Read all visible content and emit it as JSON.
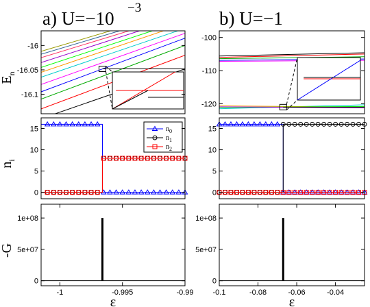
{
  "titles": {
    "left": "a)  U=−10",
    "left_exp": "−3",
    "right": "b)  U=−1"
  },
  "colors": {
    "n0": "#0000ff",
    "n1": "#000000",
    "n2": "#ff0000",
    "spectrum": [
      "#000000",
      "#ff0000",
      "#00aa00",
      "#0000ff",
      "#ff00ff",
      "#00cccc",
      "#ff9900",
      "#00ff00",
      "#9900cc",
      "#ff3366",
      "#336699",
      "#999900"
    ]
  },
  "chart_data": [
    {
      "id": "a-energy",
      "type": "line",
      "panel": "a",
      "ylabel": "E",
      "ylabel_sub": "n",
      "xlim": [
        -1.0015,
        -0.99
      ],
      "ylim": [
        -16.14,
        -15.97
      ],
      "yticks": [
        -16.1,
        -16.05,
        -16
      ],
      "ytick_labels": [
        "-16.1",
        "-16.05",
        "-16"
      ],
      "grid": false,
      "crossing_level": -16.048,
      "crossing_x": -0.9966,
      "levels": [
        {
          "y0": -16.15,
          "y1": -16.048
        },
        {
          "y0": -16.13,
          "y1": -16.02
        },
        {
          "y0": -16.11,
          "y1": -16.0
        },
        {
          "y0": -16.095,
          "y1": -15.985
        },
        {
          "y0": -16.08,
          "y1": -15.975
        },
        {
          "y0": -16.065,
          "y1": -15.965
        },
        {
          "y0": -16.055,
          "y1": -15.955
        },
        {
          "y0": -16.045,
          "y1": -15.948
        },
        {
          "y0": -16.035,
          "y1": -15.94
        },
        {
          "y0": -16.025,
          "y1": -15.935
        },
        {
          "y0": -16.018,
          "y1": -15.93
        },
        {
          "y0": -16.012,
          "y1": -15.925
        }
      ],
      "inset": true
    },
    {
      "id": "b-energy",
      "type": "line",
      "panel": "b",
      "ylabel": "",
      "xlim": [
        -0.1,
        -0.025
      ],
      "ylim": [
        -123,
        -98
      ],
      "yticks": [
        -120,
        -110,
        -100
      ],
      "ytick_labels": [
        "-120",
        "-110",
        "-100"
      ],
      "grid": false,
      "levels": [
        {
          "y0": -105.6,
          "y1": -104.6
        },
        {
          "y0": -106.0,
          "y1": -105.0
        },
        {
          "y0": -106.4,
          "y1": -105.8
        },
        {
          "y0": -106.9,
          "y1": -106.5
        },
        {
          "y0": -107.2,
          "y1": -106.9
        },
        {
          "y0": -121.5,
          "y1": -120.3
        },
        {
          "y0": -120.6,
          "y1": -121.0
        },
        {
          "y0": -121.1,
          "y1": -120.8
        },
        {
          "y0": -120.9,
          "y1": -121.2
        }
      ],
      "crossing_level": -121.0,
      "crossing_x": -0.067,
      "inset": true
    },
    {
      "id": "a-occupation",
      "type": "line",
      "panel": "a",
      "ylabel": "n",
      "ylabel_sub": "i",
      "xlim": [
        -1.0015,
        -0.99
      ],
      "ylim": [
        -1.5,
        17.5
      ],
      "yticks": [
        0,
        5,
        10,
        15
      ],
      "ytick_labels": [
        "0",
        "5",
        "10",
        "15"
      ],
      "step_x": -0.9966,
      "legend": [
        "n",
        "n",
        "n"
      ],
      "legend_sub": [
        "0",
        "1",
        "2"
      ],
      "legend_position": "top-right",
      "series": [
        {
          "name": "n0",
          "before": 16,
          "after": 0,
          "marker": "triangle"
        },
        {
          "name": "n1",
          "before": 0,
          "after": 8,
          "marker": "circle"
        },
        {
          "name": "n2",
          "before": 0,
          "after": 8,
          "marker": "square"
        }
      ],
      "marker_x": [
        -1.001,
        -1.0005,
        -1.0,
        -0.9995,
        -0.999,
        -0.9985,
        -0.998,
        -0.9975,
        -0.997,
        -0.9965,
        -0.996,
        -0.9955,
        -0.995,
        -0.9945,
        -0.994,
        -0.9935,
        -0.993,
        -0.9925,
        -0.992,
        -0.9915,
        -0.991,
        -0.9905,
        -0.99
      ]
    },
    {
      "id": "b-occupation",
      "type": "line",
      "panel": "b",
      "ylabel": "",
      "xlim": [
        -0.1,
        -0.025
      ],
      "ylim": [
        -1.5,
        17.5
      ],
      "yticks": [
        0,
        5,
        10,
        15
      ],
      "ytick_labels": [
        "0",
        "5",
        "10",
        "15"
      ],
      "step_x": -0.067,
      "series": [
        {
          "name": "n0",
          "before": 16,
          "after": 0,
          "marker": "triangle"
        },
        {
          "name": "n1",
          "before": 0,
          "after": 16,
          "marker": "circle"
        },
        {
          "name": "n2",
          "before": 0,
          "after": 0,
          "marker": "square"
        }
      ],
      "marker_x": [
        -0.1,
        -0.097,
        -0.094,
        -0.091,
        -0.088,
        -0.085,
        -0.082,
        -0.079,
        -0.076,
        -0.073,
        -0.07,
        -0.067,
        -0.064,
        -0.061,
        -0.058,
        -0.055,
        -0.052,
        -0.049,
        -0.046,
        -0.043,
        -0.04,
        -0.037,
        -0.034,
        -0.031,
        -0.028,
        -0.025
      ]
    },
    {
      "id": "a-G",
      "type": "line",
      "panel": "a",
      "ylabel": "-G",
      "xlabel": "ε",
      "xlim": [
        -1.0015,
        -0.99
      ],
      "ylim": [
        -8000000.0,
        122000000.0
      ],
      "yticks": [
        0,
        50000000.0,
        100000000.0
      ],
      "ytick_labels": [
        "0",
        "5e+07",
        "1e+08"
      ],
      "xticks": [
        -1.0,
        -0.995,
        -0.99
      ],
      "xtick_labels": [
        "-1",
        "-0.995",
        "-0.99"
      ],
      "spike_x": -0.9966,
      "spike_height": 100000000.0
    },
    {
      "id": "b-G",
      "type": "line",
      "panel": "b",
      "ylabel": "",
      "xlabel": "ε",
      "xlim": [
        -0.1,
        -0.025
      ],
      "ylim": [
        -8000000.0,
        122000000.0
      ],
      "yticks": [
        0,
        50000000.0,
        100000000.0
      ],
      "ytick_labels": [
        "0",
        "5e+07",
        "1e+08"
      ],
      "xticks": [
        -0.1,
        -0.08,
        -0.06,
        -0.04
      ],
      "xtick_labels": [
        "-0.1",
        "-0.08",
        "-0.06",
        "-0.04"
      ],
      "spike_x": -0.067,
      "spike_height": 100000000.0
    }
  ]
}
